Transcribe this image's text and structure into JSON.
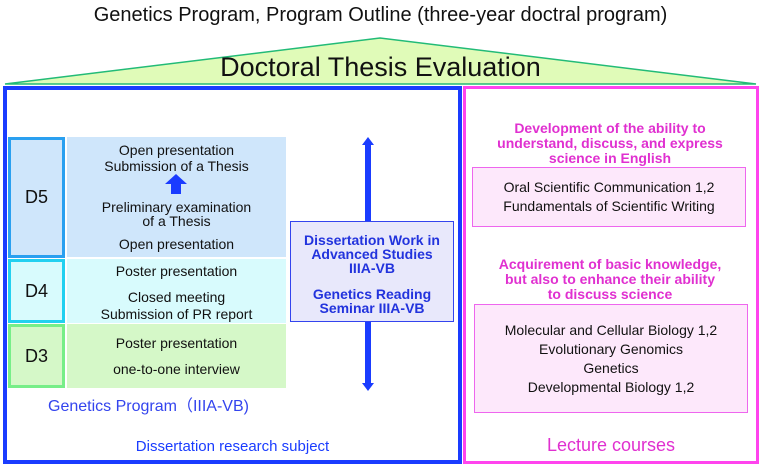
{
  "title": "Genetics Program, Program Outline (three-year doctral program)",
  "evaluation": "Doctoral Thesis Evaluation",
  "years": [
    {
      "label": "D5",
      "items": [
        "Open presentation",
        "Submission of a Thesis",
        "Preliminary examination",
        "of a Thesis",
        "Open presentation"
      ]
    },
    {
      "label": "D4",
      "items": [
        "Poster presentation",
        "Closed meeting",
        "Submission of PR report"
      ]
    },
    {
      "label": "D3",
      "items": [
        "Poster presentation",
        "one-to-one interview"
      ]
    }
  ],
  "program_label": "Genetics Program（IIIA-VB)",
  "dissertation_box": {
    "line1": "Dissertation Work in",
    "line2": "Advanced Studies",
    "line3": "IIIA-VB",
    "line4": "Genetics Reading",
    "line5": "Seminar IIIA-VB"
  },
  "left_footer": "Dissertation research subject",
  "right": {
    "heading1": [
      "Development of the ability to",
      "understand, discuss, and express",
      "science in English"
    ],
    "courses1": [
      "Oral Scientific Communication 1,2",
      "Fundamentals of Scientific Writing"
    ],
    "heading2": [
      "Acquirement of basic knowledge,",
      "but also to enhance their ability",
      "to discuss science"
    ],
    "courses2": [
      "Molecular and Cellular Biology 1,2",
      "Evolutionary Genomics",
      "Genetics",
      "Developmental Biology 1,2"
    ],
    "footer": "Lecture courses"
  },
  "colors": {
    "blue": "#1a3cff",
    "pink": "#ff44ee",
    "pink_text": "#e030d0",
    "roof": "#e0fbb8"
  }
}
